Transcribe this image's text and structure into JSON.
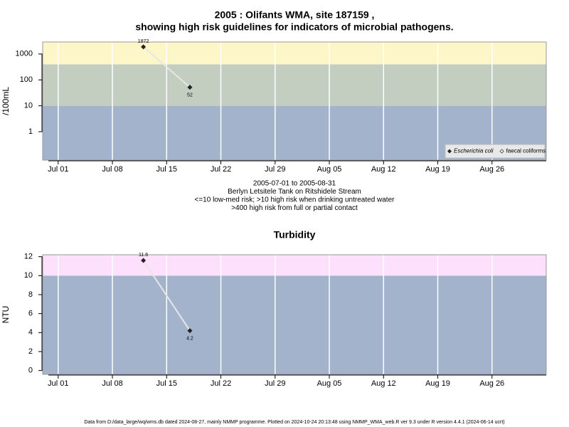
{
  "chart_data": [
    {
      "type": "line",
      "title": [
        "2005 : Olifants WMA, site 187159 ,",
        "showing high risk guidelines for indicators of microbial pathogens."
      ],
      "subtitle": [
        "2005-07-01 to 2005-08-31",
        "Berlyn Letsitele Tank on Ritshidele Stream",
        "<=10 low-med risk; >10 high risk when drinking untreated water",
        ">400 high risk from full or partial contact"
      ],
      "y_label": "/100mL",
      "log_scale": true,
      "ylim": [
        0.08,
        2900
      ],
      "yticks": [
        1,
        10,
        100,
        1000
      ],
      "xlim": [
        "Jun 29",
        "Sep 02"
      ],
      "xticks": [
        "Jul 01",
        "Jul 08",
        "Jul 15",
        "Jul 22",
        "Jul 29",
        "Aug 05",
        "Aug 12",
        "Aug 19",
        "Aug 26"
      ],
      "x": [
        "Jul 12",
        "Jul 18"
      ],
      "series": [
        {
          "name": "Escherichia coli",
          "color": "#222222",
          "values": [
            1872,
            52
          ]
        },
        {
          "name": "faecal coliforms",
          "color": "#222222",
          "values": [
            null,
            null
          ]
        }
      ],
      "thresholds": [
        10,
        400
      ],
      "band_colors": [
        "#a3b3cb",
        "#c3cdc0",
        "#fdf6c8"
      ],
      "grid": true,
      "legend": "lower right"
    },
    {
      "type": "line",
      "title": [
        "Turbidity"
      ],
      "y_label": "NTU",
      "log_scale": false,
      "ylim": [
        -0.4,
        12.2
      ],
      "yticks": [
        0,
        2,
        4,
        6,
        8,
        10,
        12
      ],
      "xlim": [
        "Jun 29",
        "Sep 02"
      ],
      "xticks": [
        "Jul 01",
        "Jul 08",
        "Jul 15",
        "Jul 22",
        "Jul 29",
        "Aug 05",
        "Aug 12",
        "Aug 19",
        "Aug 26"
      ],
      "x": [
        "Jul 12",
        "Jul 18"
      ],
      "series": [
        {
          "name": "Turbidity",
          "color": "#222222",
          "values": [
            11.6,
            4.2
          ]
        }
      ],
      "thresholds": [
        10
      ],
      "band_colors": [
        "#a3b3cb",
        "#fde0fb"
      ],
      "grid": true
    }
  ],
  "footer": "Data from D:/data_large/wq/wms.db dated 2024-08-27, mainly NMMP programme. Plotted on 2024-10-24 20:13:48 using NMMP_WMA_web.R ver 9.3 under R version 4.4.1 (2024-06-14 ucrt)"
}
